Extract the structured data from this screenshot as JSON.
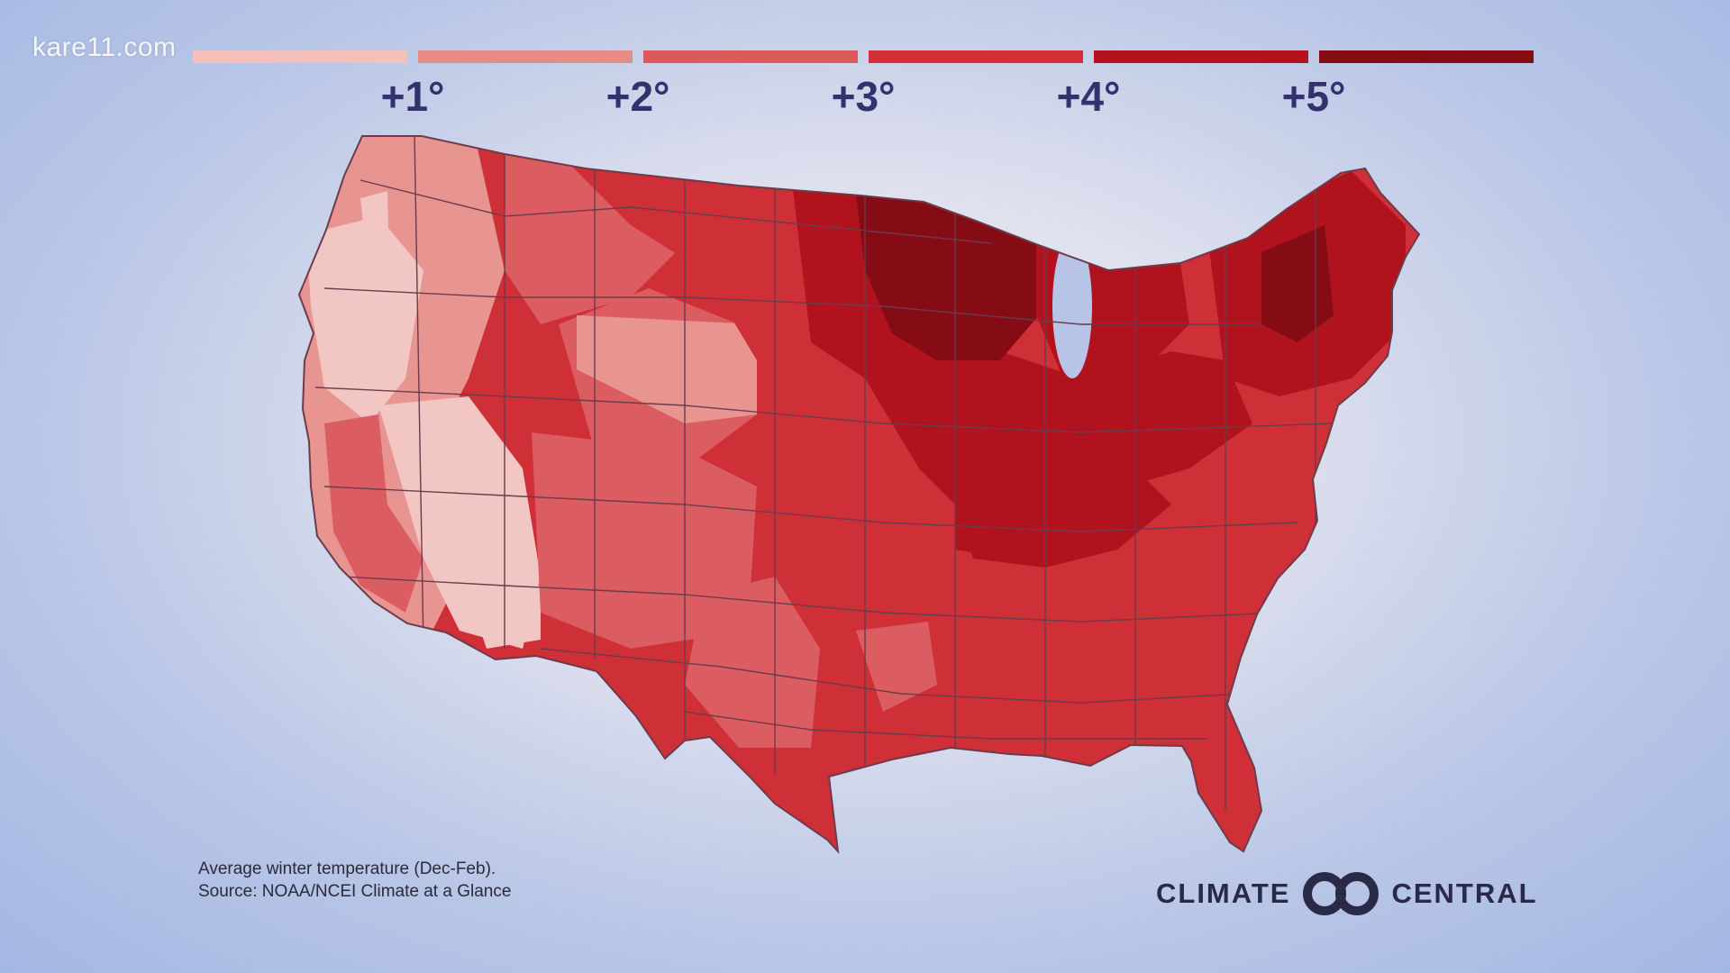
{
  "watermark": "kare11.com",
  "legend": {
    "bars": [
      {
        "color": "#f4c0bc"
      },
      {
        "color": "#e88a88"
      },
      {
        "color": "#dc5a5c"
      },
      {
        "color": "#d22f38"
      },
      {
        "color": "#b5121f"
      },
      {
        "color": "#850c15"
      }
    ],
    "labels": [
      "+1°",
      "+2°",
      "+3°",
      "+4°",
      "+5°"
    ]
  },
  "caption": {
    "line1": "Average winter temperature (Dec-Feb).",
    "line2": "Source: NOAA/NCEI Climate at a Glance"
  },
  "brand": {
    "left": "CLIMATE",
    "right": "CENTRAL",
    "logo_icon": "interlocking-rings-icon"
  },
  "map": {
    "colors": {
      "level1": "#f2c6c2",
      "level2": "#e89592",
      "level3": "#dc5d61",
      "level4": "#cf2f37",
      "level5": "#b0121e",
      "level6": "#850c15",
      "border": "#6c3b4c"
    }
  }
}
